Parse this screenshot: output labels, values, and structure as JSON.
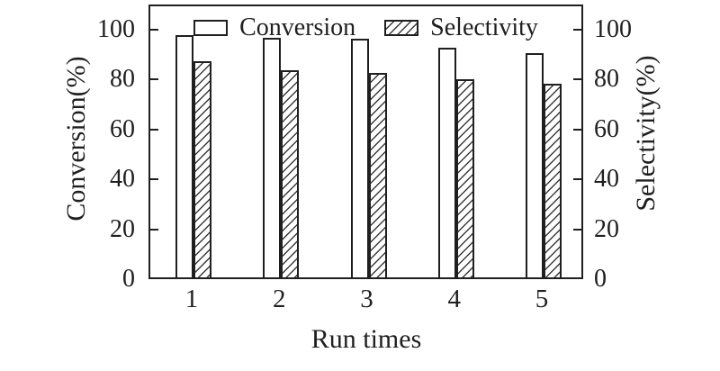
{
  "chart_data": {
    "type": "bar",
    "categories": [
      "1",
      "2",
      "3",
      "4",
      "5"
    ],
    "series": [
      {
        "name": "Conversion",
        "swatch": "open-rect",
        "values": [
          97,
          96,
          95.5,
          92,
          90
        ]
      },
      {
        "name": "Selectivity",
        "swatch": "diagonal-hatch-rect",
        "values": [
          86.5,
          83,
          82,
          79.5,
          77.5
        ]
      }
    ],
    "title": "",
    "xlabel": "Run times",
    "ylabel_left": "Conversion(%)",
    "ylabel_right": "Selectivity(%)",
    "ylim": [
      0,
      110
    ],
    "yticks": [
      0,
      20,
      40,
      60,
      80,
      100
    ],
    "grid": false,
    "legend_position": "top-center-inside"
  },
  "legend": {
    "items": [
      {
        "label": "Conversion"
      },
      {
        "label": "Selectivity"
      }
    ]
  },
  "colors": {
    "ink": "#1f1f1f",
    "background": "#ffffff"
  }
}
